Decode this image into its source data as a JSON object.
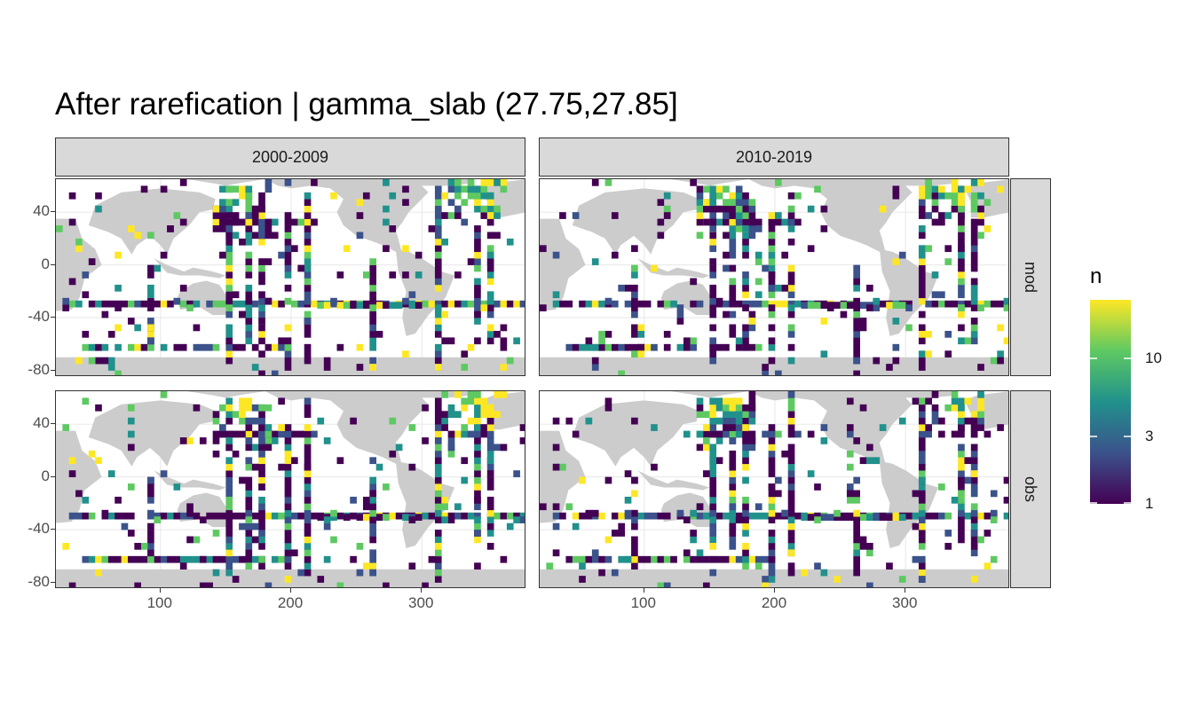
{
  "title": "After rarefication | gamma_slab (27.75,27.85]",
  "chart_data": {
    "type": "heatmap",
    "facets": {
      "columns": [
        "2000-2009",
        "2010-2019"
      ],
      "rows": [
        "mod",
        "obs"
      ]
    },
    "xlim": [
      20,
      380
    ],
    "ylim": [
      -85,
      65
    ],
    "x_ticks": [
      100,
      200,
      300
    ],
    "y_ticks": [
      40,
      0,
      -40,
      -80
    ],
    "fill_variable": "n",
    "color_scale": "viridis",
    "log_scale": true,
    "legend_ticks": [
      10,
      3,
      1
    ],
    "legend_range": [
      1,
      30
    ],
    "legend_position": "right",
    "grid": true,
    "cell_size_deg": 5,
    "colors": {
      "land": "#cccccc",
      "viridis": [
        "#440154",
        "#3b528b",
        "#21918c",
        "#5ec962",
        "#fde725"
      ]
    }
  }
}
